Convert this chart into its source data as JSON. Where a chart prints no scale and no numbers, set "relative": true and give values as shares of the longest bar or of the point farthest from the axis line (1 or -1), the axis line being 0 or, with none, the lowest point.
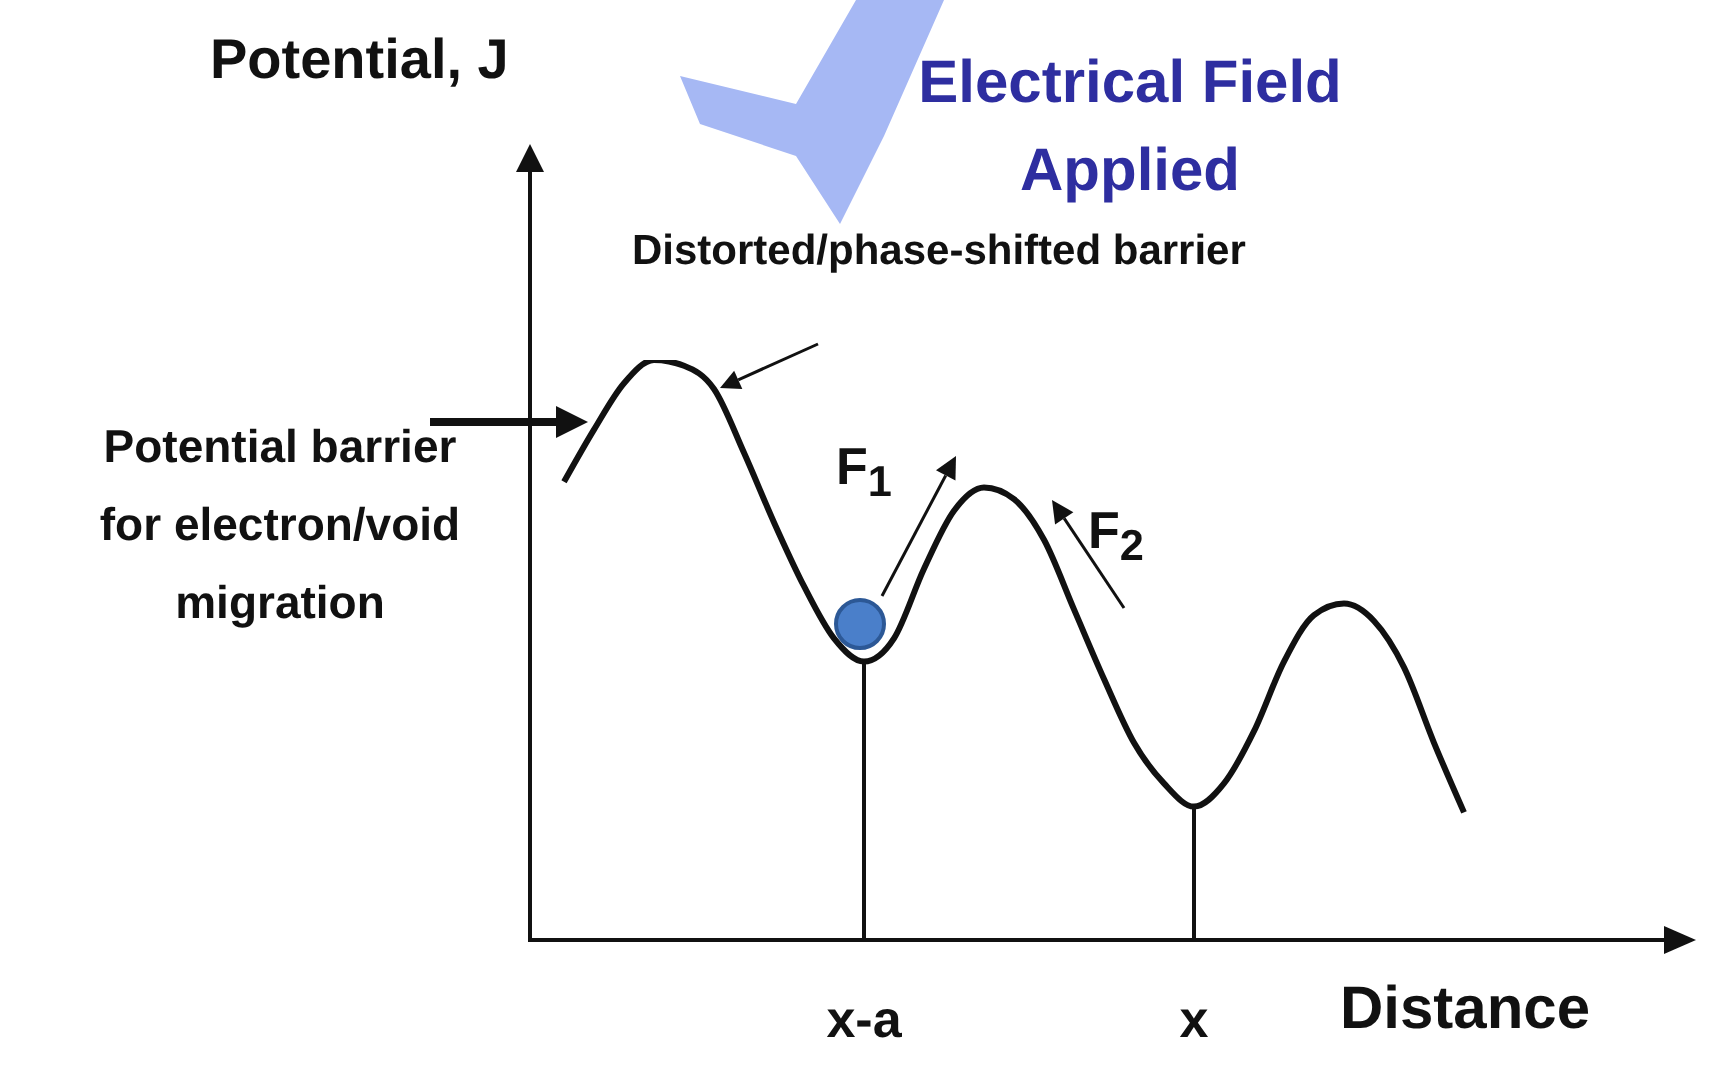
{
  "chart_data": {
    "type": "line",
    "title": "Electrical Field Applied",
    "xlabel": "Distance",
    "ylabel": "Potential, J",
    "relative": true,
    "legend": false,
    "grid": false,
    "marker": "none",
    "line_style": "solid",
    "categories": [
      null,
      null,
      null,
      null,
      null,
      null,
      null,
      null,
      null,
      null,
      "x-a",
      null,
      null,
      null,
      null,
      null,
      null,
      null,
      null,
      null,
      null,
      "x",
      null,
      null,
      null,
      null,
      null,
      null,
      null,
      null,
      null
    ],
    "series": [
      {
        "color": "#111111",
        "values": [
          0.79,
          0.88,
          0.96,
          1.0,
          0.99,
          0.95,
          0.84,
          0.72,
          0.61,
          0.52,
          0.48,
          0.52,
          0.64,
          0.74,
          0.78,
          0.76,
          0.69,
          0.57,
          0.45,
          0.34,
          0.27,
          0.23,
          0.27,
          0.36,
          0.48,
          0.56,
          0.58,
          0.55,
          0.47,
          0.34,
          0.22
        ]
      }
    ],
    "ref_lines": [
      {
        "axis": "x",
        "value": "x-a",
        "color": "#111111"
      },
      {
        "axis": "x",
        "value": "x",
        "color": "#111111"
      }
    ],
    "annotations": [
      "Distorted/phase-shifted barrier",
      "Potential barrier for electron/void migration",
      "F$_{1}$",
      "F$_{2}$"
    ]
  }
}
